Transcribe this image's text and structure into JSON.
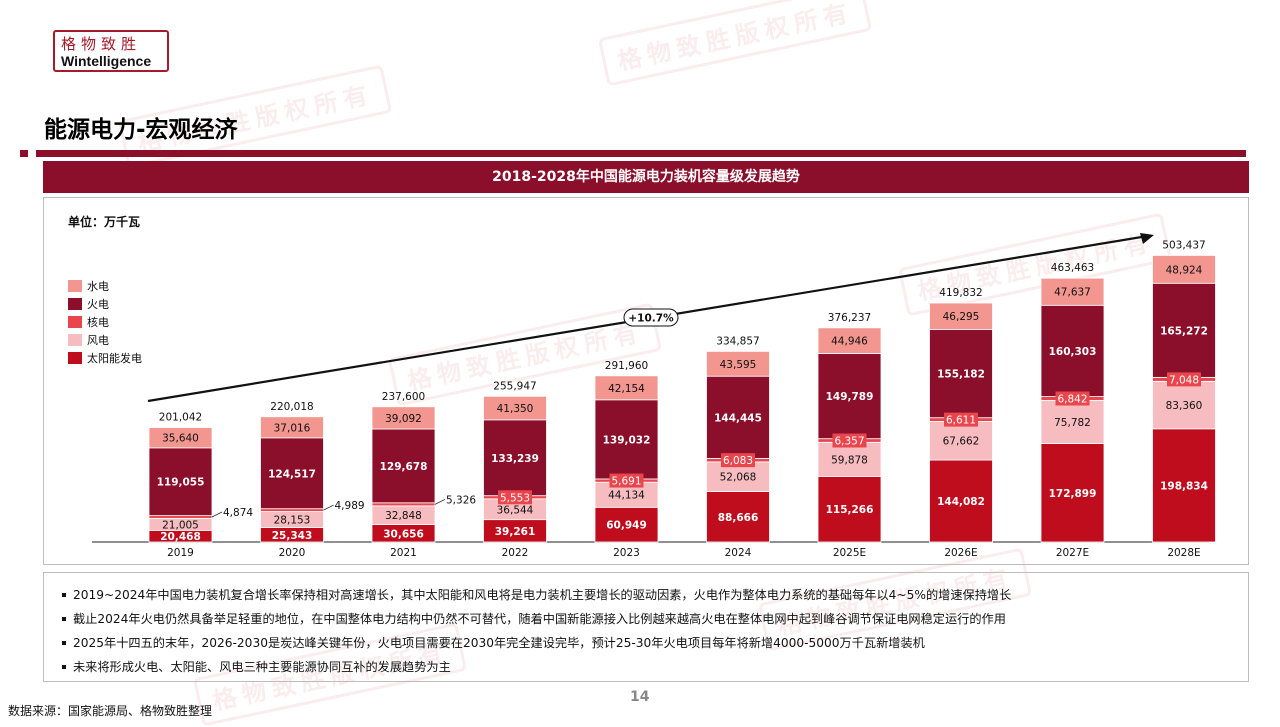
{
  "header": {
    "logo_cn": "格物致胜",
    "logo_en": "Wintelligence",
    "page_title": "能源电力-宏观经济"
  },
  "panel": {
    "title": "2018-2028年中国能源电力装机容量级发展趋势"
  },
  "watermark": "格物致胜版权所有",
  "chart_data": {
    "type": "bar",
    "stacked": true,
    "unit_label": "单位：万千瓦",
    "categories": [
      "2019",
      "2020",
      "2021",
      "2022",
      "2023",
      "2024",
      "2025E",
      "2026E",
      "2027E",
      "2028E"
    ],
    "series": [
      {
        "name": "太阳能发电",
        "color": "#c00d1e",
        "values": [
          20468,
          25343,
          30656,
          39261,
          60949,
          88666,
          115266,
          144082,
          172899,
          198834
        ]
      },
      {
        "name": "风电",
        "color": "#f6bcc0",
        "values": [
          21005,
          28153,
          32848,
          36544,
          44134,
          52068,
          59878,
          67662,
          75782,
          83360
        ]
      },
      {
        "name": "核电",
        "color": "#e8464c",
        "values": [
          4874,
          4989,
          5326,
          5553,
          5691,
          6083,
          6357,
          6611,
          6842,
          7048
        ]
      },
      {
        "name": "火电",
        "color": "#8b0e2b",
        "values": [
          119055,
          124517,
          129678,
          133239,
          139032,
          144445,
          149789,
          155182,
          160303,
          165272
        ]
      },
      {
        "name": "水电",
        "color": "#f2968f",
        "values": [
          35640,
          37016,
          39092,
          41350,
          42154,
          43595,
          44946,
          46295,
          47637,
          48924
        ]
      }
    ],
    "totals": [
      201042,
      220018,
      237600,
      255947,
      291960,
      334857,
      376237,
      419832,
      463463,
      503437
    ],
    "legend_order": [
      "水电",
      "火电",
      "核电",
      "风电",
      "太阳能发电"
    ],
    "legend_position": "left",
    "growth_annotation": "+10.7%",
    "ylim": [
      0,
      520000
    ],
    "grid": false
  },
  "notes": [
    "2019~2024年中国电力装机复合增长率保持相对高速增长，其中太阳能和风电将是电力装机主要增长的驱动因素，火电作为整体电力系统的基础每年以4~5%的增速保持增长",
    "截止2024年火电仍然具备举足轻重的地位，在中国整体电力结构中仍然不可替代，随着中国新能源接入比例越来越高火电在整体电网中起到峰谷调节保证电网稳定运行的作用",
    "2025年十四五的末年，2026-2030是炭达峰关键年份，火电项目需要在2030年完全建设完毕，预计25-30年火电项目每年将新增4000-5000万千瓦新增装机",
    "未来将形成火电、太阳能、风电三种主要能源协同互补的发展趋势为主"
  ],
  "footer": {
    "source": "数据来源：国家能源局、格物致胜整理",
    "page_number": "14"
  }
}
